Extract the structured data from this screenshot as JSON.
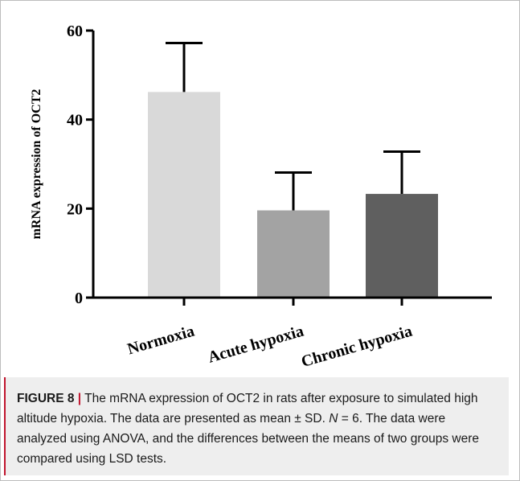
{
  "chart_data": {
    "type": "bar",
    "categories": [
      "Normoxia",
      "Acute hypoxia",
      "Chronic hypoxia"
    ],
    "values": [
      46.2,
      19.6,
      23.3
    ],
    "error": [
      11.0,
      8.5,
      9.5
    ],
    "title": "",
    "xlabel": "",
    "ylabel": "mRNA expression of OCT2",
    "ylim": [
      0,
      60
    ],
    "yticks": [
      0,
      20,
      40,
      60
    ],
    "error_type": "mean ± SD",
    "grid": false,
    "legend": "none",
    "colors": [
      "#d9d9d9",
      "#a3a3a3",
      "#5f5f5f"
    ]
  },
  "caption": {
    "label": "FIGURE 8",
    "separator": "|",
    "text_before_n": "The mRNA expression of OCT2 in rats after exposure to simulated high altitude hypoxia. The data are presented as mean ± SD. ",
    "n_symbol": "N",
    "text_after_n": " = 6. The data were analyzed using ANOVA, and the differences between the means of two groups were compared using LSD tests."
  }
}
